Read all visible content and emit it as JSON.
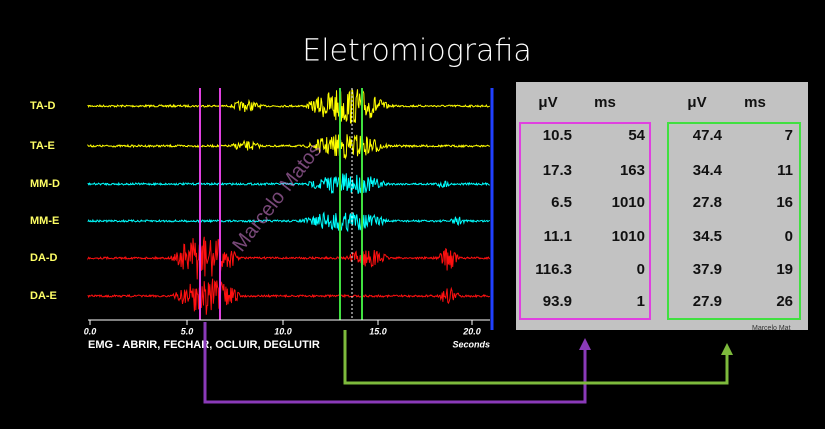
{
  "title": "Eletromiografia",
  "emg": {
    "channels": [
      "TA-D",
      "TA-E",
      "MM-D",
      "MM-E",
      "DA-D",
      "DA-E"
    ],
    "x_ticks": [
      "0.0",
      "5.0",
      "10.0",
      "15.0",
      "20.0"
    ],
    "x_unit": "Seconds",
    "caption": "EMG - ABRIR, FECHAR, OCLUIR, DEGLUTIR",
    "watermark": "Marcelo Matos"
  },
  "table": {
    "headers": [
      "μV",
      "ms",
      "μV",
      "ms"
    ],
    "rows": [
      [
        "10.5",
        "54",
        "47.4",
        "7"
      ],
      [
        "17.3",
        "163",
        "34.4",
        "11"
      ],
      [
        "6.5",
        "1010",
        "27.8",
        "16"
      ],
      [
        "11.1",
        "1010",
        "34.5",
        "0"
      ],
      [
        "116.3",
        "0",
        "37.9",
        "19"
      ],
      [
        "93.9",
        "1",
        "27.9",
        "26"
      ]
    ],
    "watermark": "Marcelo Mat"
  }
}
